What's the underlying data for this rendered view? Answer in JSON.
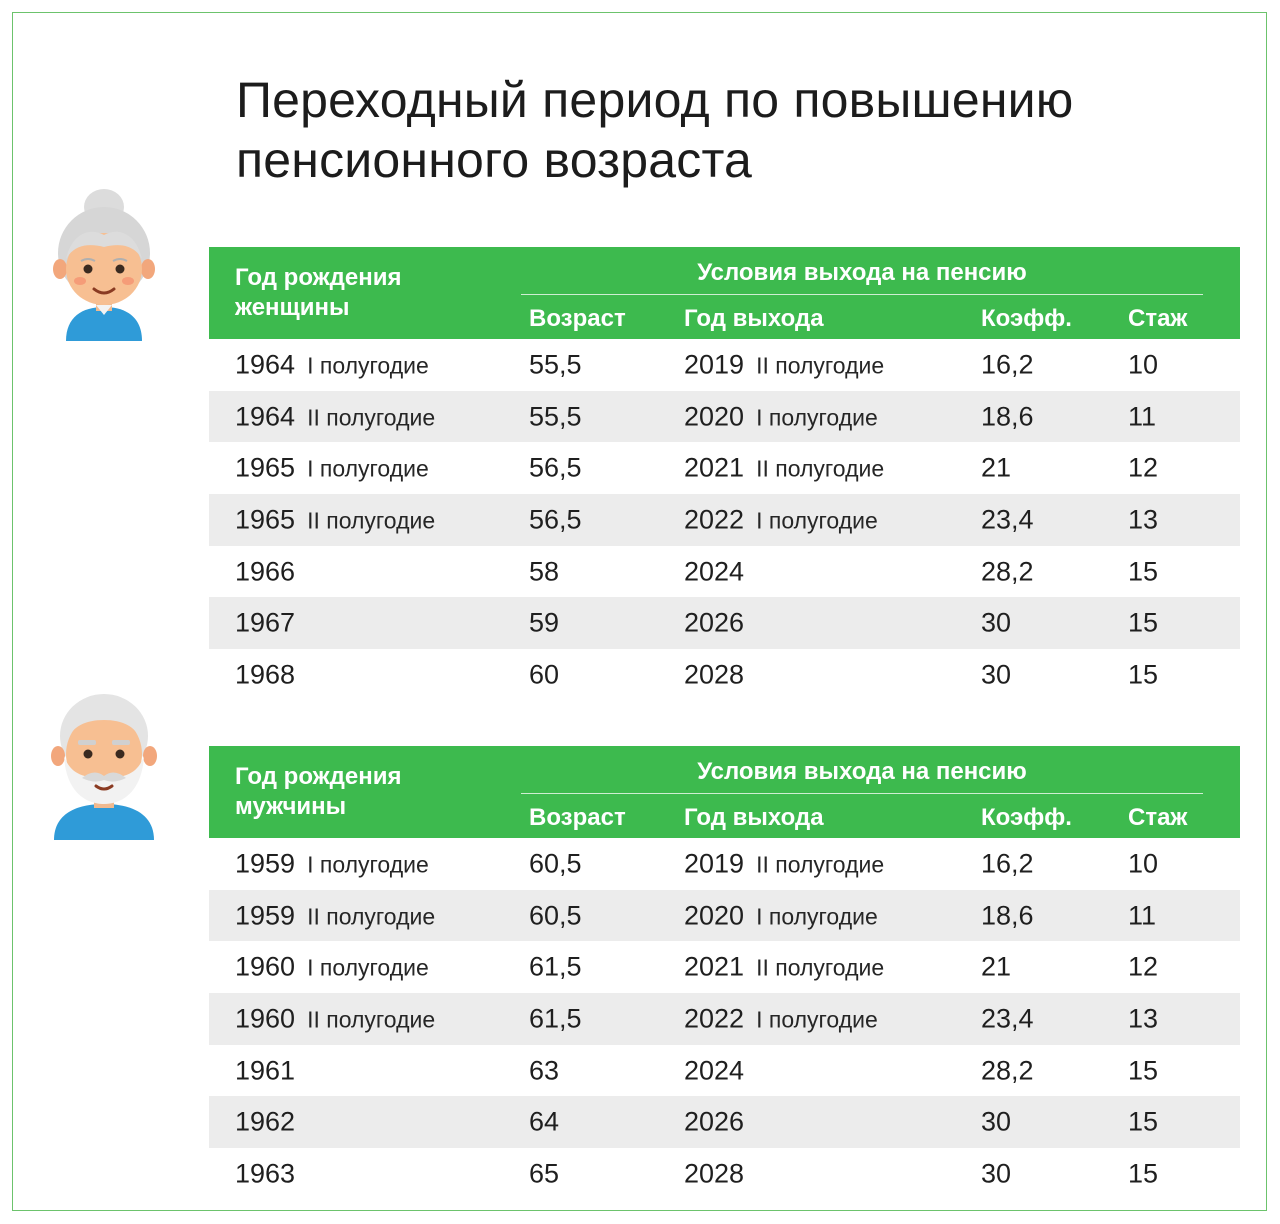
{
  "title": {
    "line1": "Переходный период по повышению",
    "line2": "пенсионного возраста"
  },
  "colors": {
    "accent": "#3dba4e",
    "frame": "#6cc36c",
    "row_shade": "#ececec"
  },
  "tables": [
    {
      "birth_header_line1": "Год рождения",
      "birth_header_line2": "женщины",
      "group_header": "Условия выхода на пенсию",
      "col_age": "Возраст",
      "col_year": "Год выхода",
      "col_coef": "Коэфф.",
      "col_exp": "Стаж",
      "rows": [
        {
          "birth": "1964",
          "birth_half": "I полугодие",
          "age": "55,5",
          "year": "2019",
          "year_half": "II полугодие",
          "coef": "16,2",
          "exp": "10"
        },
        {
          "birth": "1964",
          "birth_half": "II полугодие",
          "age": "55,5",
          "year": "2020",
          "year_half": "I полугодие",
          "coef": "18,6",
          "exp": "11"
        },
        {
          "birth": "1965",
          "birth_half": "I полугодие",
          "age": "56,5",
          "year": "2021",
          "year_half": "II полугодие",
          "coef": "21",
          "exp": "12"
        },
        {
          "birth": "1965",
          "birth_half": "II полугодие",
          "age": "56,5",
          "year": "2022",
          "year_half": "I полугодие",
          "coef": "23,4",
          "exp": "13"
        },
        {
          "birth": "1966",
          "birth_half": "",
          "age": "58",
          "year": "2024",
          "year_half": "",
          "coef": "28,2",
          "exp": "15"
        },
        {
          "birth": "1967",
          "birth_half": "",
          "age": "59",
          "year": "2026",
          "year_half": "",
          "coef": "30",
          "exp": "15"
        },
        {
          "birth": "1968",
          "birth_half": "",
          "age": "60",
          "year": "2028",
          "year_half": "",
          "coef": "30",
          "exp": "15"
        }
      ]
    },
    {
      "birth_header_line1": "Год рождения",
      "birth_header_line2": "мужчины",
      "group_header": "Условия выхода на пенсию",
      "col_age": "Возраст",
      "col_year": "Год выхода",
      "col_coef": "Коэфф.",
      "col_exp": "Стаж",
      "rows": [
        {
          "birth": "1959",
          "birth_half": "I полугодие",
          "age": "60,5",
          "year": "2019",
          "year_half": "II полугодие",
          "coef": "16,2",
          "exp": "10"
        },
        {
          "birth": "1959",
          "birth_half": "II полугодие",
          "age": "60,5",
          "year": "2020",
          "year_half": "I полугодие",
          "coef": "18,6",
          "exp": "11"
        },
        {
          "birth": "1960",
          "birth_half": "I полугодие",
          "age": "61,5",
          "year": "2021",
          "year_half": "II полугодие",
          "coef": "21",
          "exp": "12"
        },
        {
          "birth": "1960",
          "birth_half": "II полугодие",
          "age": "61,5",
          "year": "2022",
          "year_half": "I полугодие",
          "coef": "23,4",
          "exp": "13"
        },
        {
          "birth": "1961",
          "birth_half": "",
          "age": "63",
          "year": "2024",
          "year_half": "",
          "coef": "28,2",
          "exp": "15"
        },
        {
          "birth": "1962",
          "birth_half": "",
          "age": "64",
          "year": "2026",
          "year_half": "",
          "coef": "30",
          "exp": "15"
        },
        {
          "birth": "1963",
          "birth_half": "",
          "age": "65",
          "year": "2028",
          "year_half": "",
          "coef": "30",
          "exp": "15"
        }
      ]
    }
  ]
}
